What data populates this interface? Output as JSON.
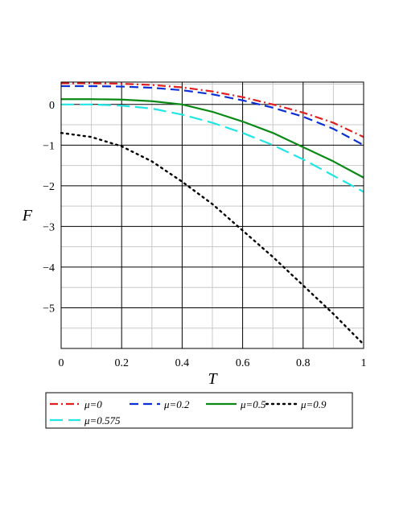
{
  "chart_data": {
    "type": "line",
    "title": "",
    "xlabel": "T",
    "ylabel": "F",
    "xlim": [
      0,
      1
    ],
    "ylim": [
      -6,
      0.55
    ],
    "grid": true,
    "x_ticks": [
      "0",
      "0.2",
      "0.4",
      "0.6",
      "0.8",
      "1"
    ],
    "y_ticks": [
      "0",
      "−1",
      "−2",
      "−3",
      "−4",
      "−5"
    ],
    "x_tick_values": [
      0,
      0.2,
      0.4,
      0.6,
      0.8,
      1
    ],
    "y_tick_values": [
      0,
      -1,
      -2,
      -3,
      -4,
      -5
    ],
    "legend_position": "bottom",
    "x": [
      0,
      0.1,
      0.2,
      0.3,
      0.4,
      0.5,
      0.6,
      0.7,
      0.8,
      0.9,
      1.0
    ],
    "series": [
      {
        "name": "μ=0",
        "color": "#e02020",
        "dash": "dashdot",
        "values": [
          0.52,
          0.52,
          0.51,
          0.48,
          0.42,
          0.32,
          0.18,
          0.0,
          -0.2,
          -0.45,
          -0.8
        ]
      },
      {
        "name": "μ=0.2",
        "color": "#0a2fd6",
        "dash": "dash",
        "values": [
          0.45,
          0.45,
          0.44,
          0.41,
          0.35,
          0.25,
          0.1,
          -0.08,
          -0.3,
          -0.6,
          -1.0
        ]
      },
      {
        "name": "μ=0.5",
        "color": "#0a8a14",
        "dash": "solid",
        "values": [
          0.13,
          0.13,
          0.12,
          0.08,
          0.0,
          -0.18,
          -0.42,
          -0.7,
          -1.05,
          -1.4,
          -1.8
        ]
      },
      {
        "name": "μ=0.9",
        "color": "#000000",
        "dash": "dot",
        "values": [
          -0.7,
          -0.8,
          -1.03,
          -1.4,
          -1.9,
          -2.45,
          -3.1,
          -3.75,
          -4.45,
          -5.15,
          -5.9
        ]
      },
      {
        "name": "μ=0.575",
        "color": "#22e5e5",
        "dash": "longdash",
        "values": [
          0.0,
          0.0,
          -0.03,
          -0.1,
          -0.25,
          -0.45,
          -0.7,
          -1.0,
          -1.35,
          -1.75,
          -2.15
        ]
      }
    ]
  }
}
